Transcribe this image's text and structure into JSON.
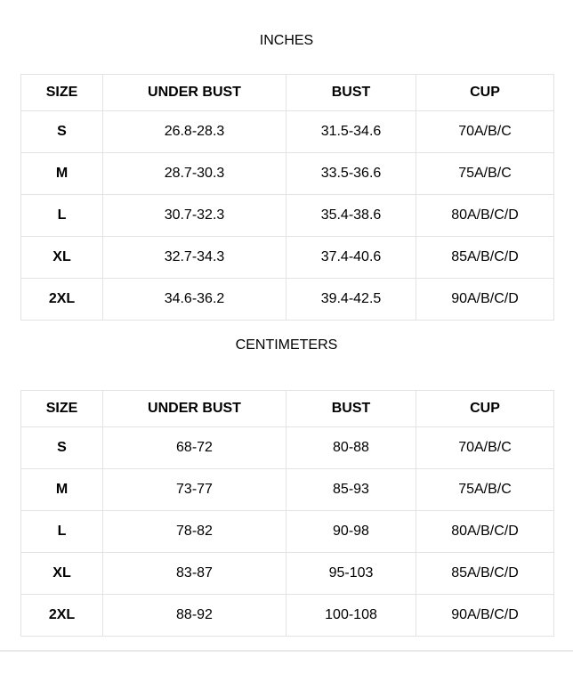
{
  "page": {
    "background_color": "#ffffff",
    "text_color": "#000000",
    "table_border_color": "#e3e3e3",
    "divider_color": "#e9e9e9"
  },
  "chart_data": [
    {
      "type": "table",
      "title": "INCHES",
      "columns": [
        "SIZE",
        "UNDER BUST",
        "BUST",
        "CUP"
      ],
      "rows": [
        [
          "S",
          "26.8-28.3",
          "31.5-34.6",
          "70A/B/C"
        ],
        [
          "M",
          "28.7-30.3",
          "33.5-36.6",
          "75A/B/C"
        ],
        [
          "L",
          "30.7-32.3",
          "35.4-38.6",
          "80A/B/C/D"
        ],
        [
          "XL",
          "32.7-34.3",
          "37.4-40.6",
          "85A/B/C/D"
        ],
        [
          "2XL",
          "34.6-36.2",
          "39.4-42.5",
          "90A/B/C/D"
        ]
      ]
    },
    {
      "type": "table",
      "title": "CENTIMETERS",
      "columns": [
        "SIZE",
        "UNDER BUST",
        "BUST",
        "CUP"
      ],
      "rows": [
        [
          "S",
          "68-72",
          "80-88",
          "70A/B/C"
        ],
        [
          "M",
          "73-77",
          "85-93",
          "75A/B/C"
        ],
        [
          "L",
          "78-82",
          "90-98",
          "80A/B/C/D"
        ],
        [
          "XL",
          "83-87",
          "95-103",
          "85A/B/C/D"
        ],
        [
          "2XL",
          "88-92",
          "100-108",
          "90A/B/C/D"
        ]
      ]
    }
  ]
}
